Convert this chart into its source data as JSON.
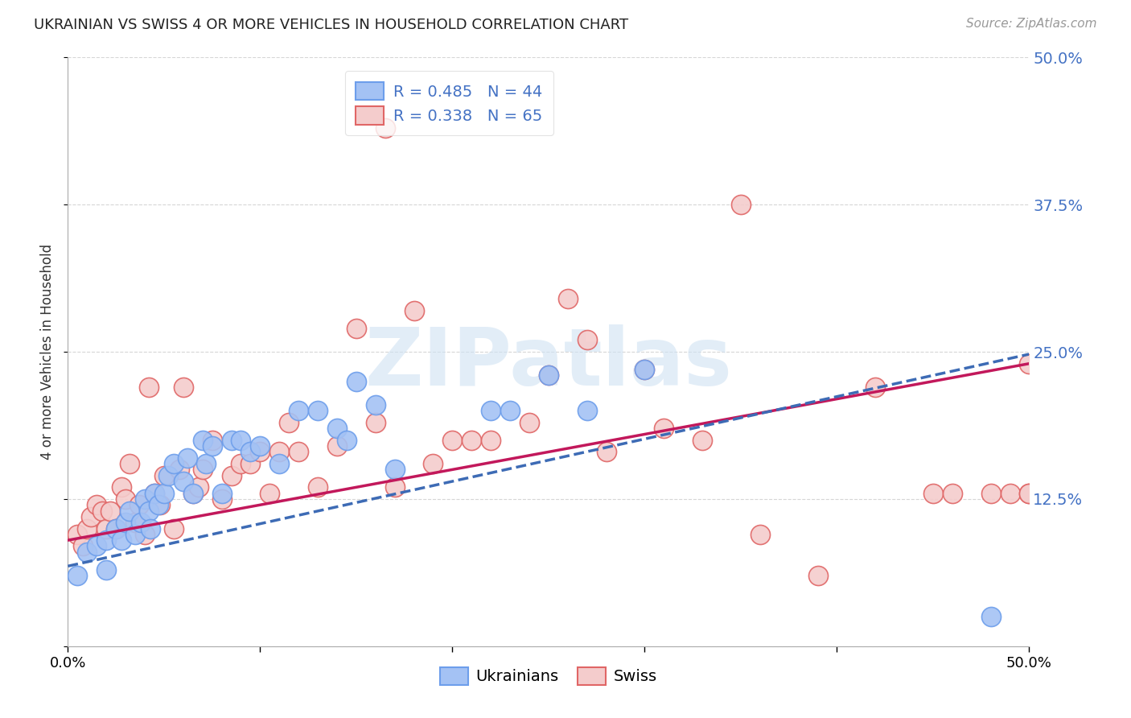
{
  "title": "UKRAINIAN VS SWISS 4 OR MORE VEHICLES IN HOUSEHOLD CORRELATION CHART",
  "source": "Source: ZipAtlas.com",
  "ylabel": "4 or more Vehicles in Household",
  "legend_blue_r": "R = 0.485",
  "legend_blue_n": "N = 44",
  "legend_pink_r": "R = 0.338",
  "legend_pink_n": "N = 65",
  "blue_fill": "#a4c2f4",
  "blue_edge": "#6d9eeb",
  "pink_fill": "#f4cccc",
  "pink_edge": "#e06666",
  "blue_line_color": "#3d6bb5",
  "pink_line_color": "#c2185b",
  "watermark": "ZIPatlas",
  "watermark_color": "#cfe2f3",
  "right_tick_color": "#4472c4",
  "blue_scatter_x": [
    0.005,
    0.01,
    0.015,
    0.02,
    0.02,
    0.025,
    0.028,
    0.03,
    0.032,
    0.035,
    0.038,
    0.04,
    0.042,
    0.043,
    0.045,
    0.047,
    0.05,
    0.052,
    0.055,
    0.06,
    0.062,
    0.065,
    0.07,
    0.072,
    0.075,
    0.08,
    0.085,
    0.09,
    0.095,
    0.1,
    0.11,
    0.12,
    0.13,
    0.14,
    0.145,
    0.15,
    0.16,
    0.17,
    0.22,
    0.23,
    0.25,
    0.27,
    0.3,
    0.48
  ],
  "blue_scatter_y": [
    0.06,
    0.08,
    0.085,
    0.065,
    0.09,
    0.1,
    0.09,
    0.105,
    0.115,
    0.095,
    0.105,
    0.125,
    0.115,
    0.1,
    0.13,
    0.12,
    0.13,
    0.145,
    0.155,
    0.14,
    0.16,
    0.13,
    0.175,
    0.155,
    0.17,
    0.13,
    0.175,
    0.175,
    0.165,
    0.17,
    0.155,
    0.2,
    0.2,
    0.185,
    0.175,
    0.225,
    0.205,
    0.15,
    0.2,
    0.2,
    0.23,
    0.2,
    0.235,
    0.025
  ],
  "pink_scatter_x": [
    0.005,
    0.008,
    0.01,
    0.012,
    0.015,
    0.018,
    0.02,
    0.022,
    0.025,
    0.028,
    0.03,
    0.032,
    0.035,
    0.037,
    0.04,
    0.042,
    0.045,
    0.048,
    0.05,
    0.055,
    0.058,
    0.06,
    0.065,
    0.068,
    0.07,
    0.075,
    0.08,
    0.085,
    0.09,
    0.095,
    0.1,
    0.105,
    0.11,
    0.115,
    0.12,
    0.13,
    0.14,
    0.15,
    0.16,
    0.165,
    0.17,
    0.18,
    0.19,
    0.2,
    0.21,
    0.22,
    0.24,
    0.25,
    0.27,
    0.3,
    0.33,
    0.36,
    0.39,
    0.42,
    0.45,
    0.46,
    0.48,
    0.49,
    0.5,
    0.5,
    0.5,
    0.35,
    0.28,
    0.31,
    0.26
  ],
  "pink_scatter_y": [
    0.095,
    0.085,
    0.1,
    0.11,
    0.12,
    0.115,
    0.1,
    0.115,
    0.1,
    0.135,
    0.125,
    0.155,
    0.105,
    0.12,
    0.095,
    0.22,
    0.13,
    0.12,
    0.145,
    0.1,
    0.15,
    0.22,
    0.13,
    0.135,
    0.15,
    0.175,
    0.125,
    0.145,
    0.155,
    0.155,
    0.165,
    0.13,
    0.165,
    0.19,
    0.165,
    0.135,
    0.17,
    0.27,
    0.19,
    0.44,
    0.135,
    0.285,
    0.155,
    0.175,
    0.175,
    0.175,
    0.19,
    0.23,
    0.26,
    0.235,
    0.175,
    0.095,
    0.06,
    0.22,
    0.13,
    0.13,
    0.13,
    0.13,
    0.24,
    0.13,
    0.13,
    0.375,
    0.165,
    0.185,
    0.295
  ],
  "blue_line_x0": 0.0,
  "blue_line_x1": 0.5,
  "blue_line_y0": 0.068,
  "blue_line_y1": 0.248,
  "pink_line_x0": 0.0,
  "pink_line_x1": 0.5,
  "pink_line_y0": 0.09,
  "pink_line_y1": 0.24,
  "xlim": [
    0.0,
    0.5
  ],
  "ylim": [
    0.0,
    0.5
  ],
  "yticks": [
    0.0,
    0.125,
    0.25,
    0.375,
    0.5
  ],
  "ytick_labels_right": [
    "",
    "12.5%",
    "25.0%",
    "37.5%",
    "50.0%"
  ],
  "xtick_show": [
    0.0,
    0.5
  ],
  "xtick_minor": [
    0.1,
    0.2,
    0.3,
    0.4
  ],
  "figwidth": 14.06,
  "figheight": 8.92
}
